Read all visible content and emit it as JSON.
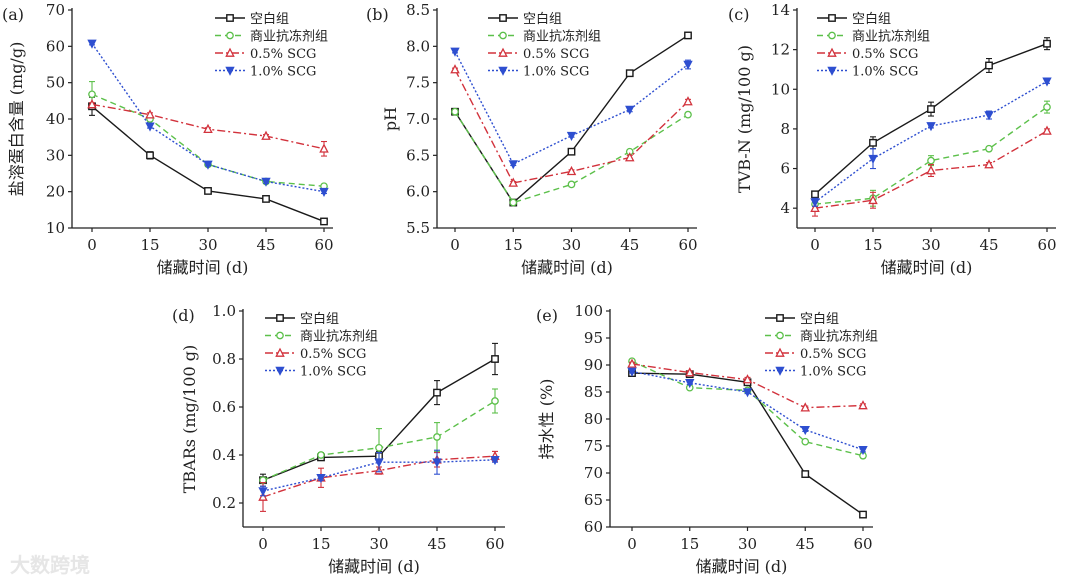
{
  "watermark": "大数跨境",
  "series_styles": [
    {
      "name": "空白组",
      "color": "#1a1a1a",
      "dash": "",
      "marker": "square"
    },
    {
      "name": "商业抗冻剂组",
      "color": "#5cc04a",
      "dash": "6,4",
      "marker": "circle"
    },
    {
      "name": "0.5% SCG",
      "color": "#d2323c",
      "dash": "8,3,2,3",
      "marker": "triangle-up"
    },
    {
      "name": "1.0% SCG",
      "color": "#2e4fd0",
      "dash": "2,2",
      "marker": "triangle-down"
    }
  ],
  "chart_data": [
    {
      "type": "line",
      "panel": "(a)",
      "xlabel": "储藏时间 (d)",
      "ylabel": "盐溶蛋白含量 (mg/g)",
      "x": [
        0,
        15,
        30,
        45,
        60
      ],
      "ylim": [
        10,
        70
      ],
      "yticks": [
        10,
        20,
        30,
        40,
        50,
        60,
        70
      ],
      "yticklabels": [
        "10",
        "20",
        "30",
        "40",
        "50",
        "60",
        "70"
      ],
      "legend": "top-right",
      "series": [
        {
          "name": "空白组",
          "values": [
            43.5,
            30,
            20.2,
            18,
            11.8
          ],
          "err": [
            2.5,
            1,
            0.5,
            0.4,
            0.4
          ]
        },
        {
          "name": "商业抗冻剂组",
          "values": [
            46.8,
            40,
            27.5,
            22.8,
            21.5
          ],
          "err": [
            3.5,
            0.5,
            0.5,
            0.5,
            0.5
          ]
        },
        {
          "name": "0.5% SCG",
          "values": [
            44,
            41.2,
            37.2,
            35.3,
            31.8
          ],
          "err": [
            0.5,
            0.5,
            0.4,
            0.4,
            2
          ]
        },
        {
          "name": "1.0% SCG",
          "values": [
            60.8,
            38,
            27.5,
            22.8,
            20
          ],
          "err": [
            0.4,
            0.5,
            0.4,
            0.5,
            0.5
          ]
        }
      ]
    },
    {
      "type": "line",
      "panel": "(b)",
      "xlabel": "储藏时间 (d)",
      "ylabel": "pH",
      "x": [
        0,
        15,
        30,
        45,
        60
      ],
      "ylim": [
        5.5,
        8.5
      ],
      "yticks": [
        5.5,
        6,
        6.5,
        7,
        7.5,
        8,
        8.5
      ],
      "yticklabels": [
        "5.5",
        "6.0",
        "6.5",
        "7.0",
        "7.5",
        "8.0",
        "8.5"
      ],
      "legend": "top",
      "series": [
        {
          "name": "空白组",
          "values": [
            7.1,
            5.85,
            6.55,
            7.63,
            8.15
          ],
          "err": [
            0.02,
            0.02,
            0.03,
            0.02,
            0.02
          ]
        },
        {
          "name": "商业抗冻剂组",
          "values": [
            7.1,
            5.85,
            6.1,
            6.55,
            7.06
          ],
          "err": [
            0.02,
            0.02,
            0.03,
            0.02,
            0.02
          ]
        },
        {
          "name": "0.5% SCG",
          "values": [
            7.68,
            6.12,
            6.28,
            6.47,
            7.24
          ],
          "err": [
            0.02,
            0.02,
            0.02,
            0.03,
            0.03
          ]
        },
        {
          "name": "1.0% SCG",
          "values": [
            7.93,
            6.38,
            6.77,
            7.13,
            7.75
          ],
          "err": [
            0.02,
            0.02,
            0.02,
            0.03,
            0.06
          ]
        }
      ]
    },
    {
      "type": "line",
      "panel": "(c)",
      "xlabel": "储藏时间 (d)",
      "ylabel": "TVB-N (mg/100 g)",
      "x": [
        0,
        15,
        30,
        45,
        60
      ],
      "ylim": [
        3,
        14
      ],
      "yticks": [
        4,
        6,
        8,
        10,
        12,
        14
      ],
      "yticklabels": [
        "4",
        "6",
        "8",
        "10",
        "12",
        "14"
      ],
      "legend": "top-left",
      "series": [
        {
          "name": "空白组",
          "values": [
            4.7,
            7.3,
            9.0,
            11.2,
            12.3
          ],
          "err": [
            0.1,
            0.3,
            0.35,
            0.35,
            0.3
          ]
        },
        {
          "name": "商业抗冻剂组",
          "values": [
            4.2,
            4.5,
            6.4,
            7.0,
            9.1
          ],
          "err": [
            0.1,
            0.4,
            0.25,
            0.1,
            0.3
          ]
        },
        {
          "name": "0.5% SCG",
          "values": [
            4.0,
            4.4,
            5.9,
            6.2,
            7.9
          ],
          "err": [
            0.4,
            0.4,
            0.3,
            0.1,
            0.1
          ]
        },
        {
          "name": "1.0% SCG",
          "values": [
            4.3,
            6.5,
            8.15,
            8.7,
            10.4
          ],
          "err": [
            0.2,
            0.5,
            0.1,
            0.2,
            0.1
          ]
        }
      ]
    },
    {
      "type": "line",
      "panel": "(d)",
      "xlabel": "储藏时间 (d)",
      "ylabel": "TBARs (mg/100 g)",
      "x": [
        0,
        15,
        30,
        45,
        60
      ],
      "ylim": [
        0.1,
        1.0
      ],
      "yticks": [
        0.2,
        0.4,
        0.6,
        0.8,
        1.0
      ],
      "yticklabels": [
        "0.2",
        "0.4",
        "0.6",
        "0.8",
        "1.0"
      ],
      "legend": "top-left",
      "series": [
        {
          "name": "空白组",
          "values": [
            0.295,
            0.39,
            0.395,
            0.66,
            0.8
          ],
          "err": [
            0.025,
            0.01,
            0.02,
            0.05,
            0.065
          ]
        },
        {
          "name": "商业抗冻剂组",
          "values": [
            0.295,
            0.4,
            0.43,
            0.475,
            0.625
          ],
          "err": [
            0.01,
            0.01,
            0.08,
            0.06,
            0.05
          ]
        },
        {
          "name": "0.5% SCG",
          "values": [
            0.225,
            0.305,
            0.335,
            0.38,
            0.395
          ],
          "err": [
            0.06,
            0.04,
            0.015,
            0.03,
            0.02
          ]
        },
        {
          "name": "1.0% SCG",
          "values": [
            0.25,
            0.305,
            0.37,
            0.37,
            0.38
          ],
          "err": [
            0.02,
            0.01,
            0.04,
            0.05,
            0.01
          ]
        }
      ]
    },
    {
      "type": "line",
      "panel": "(e)",
      "xlabel": "储藏时间 (d)",
      "ylabel": "持水性 (%)",
      "x": [
        0,
        15,
        30,
        45,
        60
      ],
      "ylim": [
        60,
        100
      ],
      "yticks": [
        60,
        65,
        70,
        75,
        80,
        85,
        90,
        95,
        100
      ],
      "yticklabels": [
        "60",
        "65",
        "70",
        "75",
        "80",
        "85",
        "90",
        "95",
        "100"
      ],
      "legend": "top-right",
      "series": [
        {
          "name": "空白组",
          "values": [
            88.5,
            88.3,
            86.8,
            69.8,
            62.3
          ],
          "err": [
            0.3,
            0.4,
            0.3,
            0.2,
            0.2
          ]
        },
        {
          "name": "商业抗冻剂组",
          "values": [
            90.7,
            85.8,
            85.3,
            75.8,
            73.2
          ],
          "err": [
            0.3,
            0.3,
            0.3,
            0.3,
            0.4
          ]
        },
        {
          "name": "0.5% SCG",
          "values": [
            90.2,
            88.6,
            87.3,
            82.1,
            82.5
          ],
          "err": [
            0.3,
            0.3,
            0.4,
            0.3,
            0.3
          ]
        },
        {
          "name": "1.0% SCG",
          "values": [
            88.8,
            86.7,
            85,
            78,
            74.3
          ],
          "err": [
            0.3,
            0.3,
            0.3,
            0.3,
            0.4
          ]
        }
      ]
    }
  ]
}
